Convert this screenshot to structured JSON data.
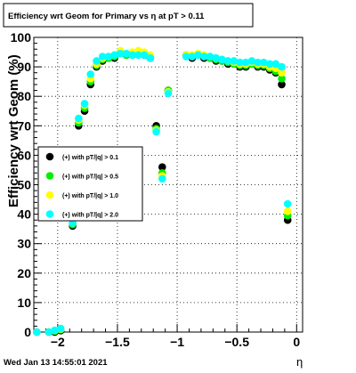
{
  "canvas": {
    "title": "Efficiency wrt Geom for Primary vs   η at pT > 0.11",
    "timestamp": "Wed Jan 13 14:55:01 2021"
  },
  "chart_data": {
    "type": "scatter",
    "title": "Efficiency wrt Geom for Primary vs   η at pT > 0.11",
    "xlabel": "η",
    "ylabel": "Efficiency wrt Geom (%)",
    "xlim": [
      -2.2,
      0.05
    ],
    "ylim": [
      0,
      100
    ],
    "x_ticks": [
      -2,
      -1.5,
      -1,
      -0.5,
      0
    ],
    "x_tick_labels": [
      "−2",
      "−1.5",
      "−1",
      "−0.5",
      "0"
    ],
    "y_ticks": [
      0,
      10,
      20,
      30,
      40,
      50,
      60,
      70,
      80,
      90,
      100
    ],
    "y_tick_labels": [
      "0",
      "10",
      "20",
      "30",
      "40",
      "50",
      "60",
      "70",
      "80",
      "90",
      "100"
    ],
    "grid": true,
    "legend_position": "left-middle",
    "x": [
      -2.175,
      -2.075,
      -2.025,
      -1.975,
      -1.875,
      -1.825,
      -1.775,
      -1.725,
      -1.675,
      -1.625,
      -1.575,
      -1.525,
      -1.475,
      -1.425,
      -1.375,
      -1.325,
      -1.275,
      -1.225,
      -1.175,
      -1.125,
      -1.075,
      -1.025,
      -0.975,
      -0.925,
      -0.875,
      -0.825,
      -0.775,
      -0.725,
      -0.675,
      -0.625,
      -0.575,
      -0.525,
      -0.475,
      -0.425,
      -0.375,
      -0.325,
      -0.275,
      -0.225,
      -0.175,
      -0.125,
      -0.075,
      -0.025
    ],
    "series": [
      {
        "name": "(+) with pT/|q| > 0.1",
        "color": "#000000",
        "values": [
          0,
          0,
          0,
          0.5,
          36,
          70,
          75,
          84,
          90,
          92,
          93,
          93,
          95,
          94,
          94,
          95,
          94,
          93,
          70,
          56,
          82,
          null,
          null,
          94,
          93,
          94,
          93,
          93,
          92,
          92,
          91,
          91,
          90,
          90,
          91,
          90,
          90,
          89,
          88,
          84,
          38,
          null
        ]
      },
      {
        "name": "(+) with pT/|q| > 0.5",
        "color": "#00ee00",
        "values": [
          0,
          0,
          0.3,
          0.8,
          36.5,
          71,
          76,
          85,
          90.5,
          92.5,
          93,
          93.5,
          95,
          94,
          94.5,
          95,
          94.5,
          93.5,
          69,
          54,
          82,
          null,
          null,
          94,
          93.5,
          94,
          93.5,
          93,
          92.5,
          92,
          91.5,
          91,
          90.5,
          90.5,
          91,
          90.5,
          90.5,
          89.5,
          88.5,
          86,
          39.5,
          null
        ]
      },
      {
        "name": "(+) with pT/|q| > 1.0",
        "color": "#ffff00",
        "values": [
          0,
          0,
          0.5,
          1,
          37,
          72,
          77,
          86,
          91,
          93,
          93.5,
          94,
          95.5,
          94.5,
          95,
          95.5,
          95,
          94,
          68.5,
          53,
          81.5,
          null,
          null,
          94,
          94,
          94.5,
          94,
          93.5,
          93,
          92.5,
          92,
          91.5,
          91,
          91,
          91.5,
          91,
          91,
          90,
          89.5,
          88,
          41,
          null
        ]
      },
      {
        "name": "(+) with pT/|q| > 2.0",
        "color": "#00ffff",
        "values": [
          0,
          0,
          0.6,
          1.2,
          37,
          72.5,
          77.5,
          87.5,
          92,
          93.5,
          93.5,
          94,
          94.5,
          94.5,
          94,
          94,
          94,
          93,
          68,
          52,
          81,
          null,
          null,
          93.5,
          93.5,
          94,
          93.5,
          93.5,
          93,
          92.5,
          92,
          92,
          91.5,
          91.5,
          92,
          91.5,
          91.5,
          91,
          91,
          90,
          43.5,
          null
        ]
      }
    ]
  }
}
